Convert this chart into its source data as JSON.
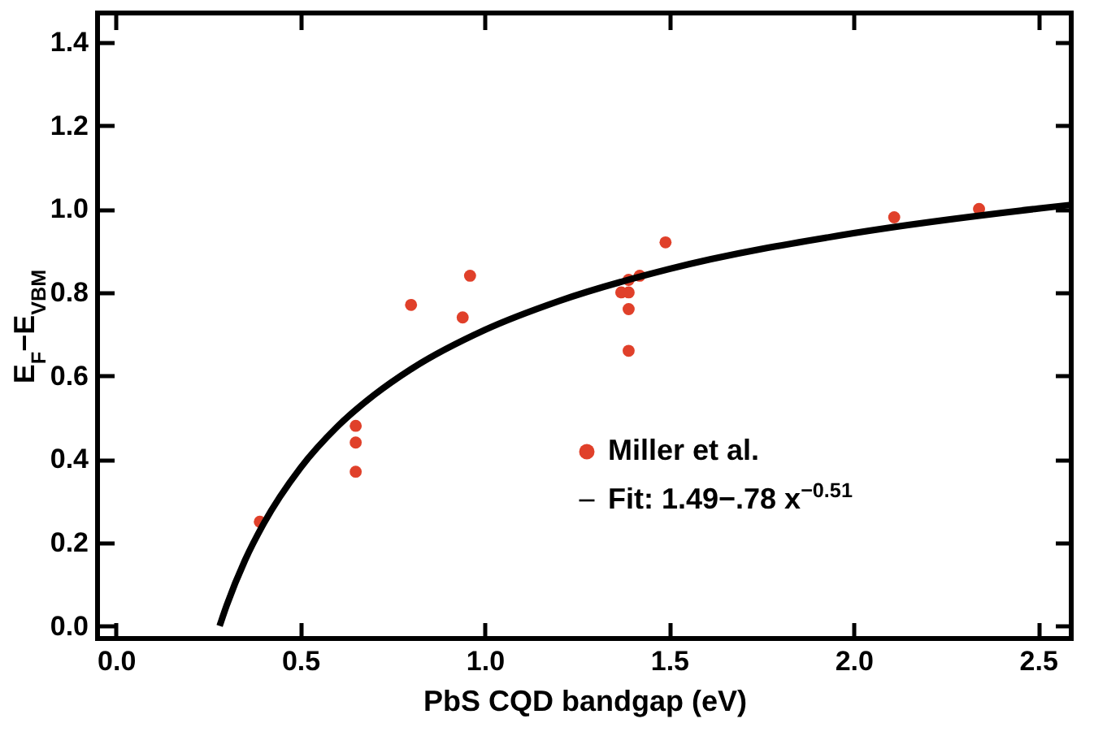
{
  "chart_data": {
    "type": "scatter",
    "xlabel": "PbS CQD bandgap (eV)",
    "ylabel": "E$_{F}$−E$_{VBM}$",
    "xlim": [
      -0.05,
      2.59
    ],
    "ylim": [
      -0.03,
      1.47
    ],
    "xticks": [
      {
        "value": 0,
        "label": "0.0"
      },
      {
        "value": 0.5,
        "label": "0.5"
      },
      {
        "value": 1,
        "label": "1.0"
      },
      {
        "value": 1.5,
        "label": "1.5"
      },
      {
        "value": 2,
        "label": "2.0"
      },
      {
        "value": 2.5,
        "label": "2.5"
      }
    ],
    "yticks": [
      {
        "value": 0,
        "label": "0.0"
      },
      {
        "value": 0.2,
        "label": "0.2"
      },
      {
        "value": 0.4,
        "label": "0.4"
      },
      {
        "value": 0.6,
        "label": "0.6"
      },
      {
        "value": 0.8,
        "label": "0.8"
      },
      {
        "value": 1,
        "label": "1.0"
      },
      {
        "value": 1.2,
        "label": "1.2"
      },
      {
        "value": 1.4,
        "label": "1.4"
      }
    ],
    "grid": false,
    "legend": "bottom right",
    "series": [
      {
        "name": "Miller et al.",
        "marker": "circle",
        "color": "#e0402a",
        "x": [
          0.39,
          0.65,
          0.65,
          0.65,
          0.8,
          0.94,
          0.96,
          1.37,
          1.39,
          1.39,
          1.42,
          1.39,
          1.39,
          1.49,
          2.11,
          2.34
        ],
        "values": [
          0.25,
          0.48,
          0.44,
          0.37,
          0.77,
          0.74,
          0.84,
          0.8,
          0.8,
          0.83,
          0.84,
          0.76,
          0.66,
          0.92,
          0.98,
          1.0
        ]
      },
      {
        "name": "Fit: 1.49−.78 x$^{−0.51}$",
        "type": "line",
        "color": "#000000",
        "x": [
          0.281,
          0.3,
          0.35,
          0.4,
          0.5,
          0.6,
          0.7,
          0.8,
          1.0,
          1.2,
          1.5,
          2.0,
          2.5,
          2.59
        ],
        "values": [
          0,
          0.049,
          0.158,
          0.245,
          0.379,
          0.478,
          0.554,
          0.616,
          0.71,
          0.779,
          0.856,
          0.942,
          1.001,
          1.01
        ]
      }
    ]
  }
}
